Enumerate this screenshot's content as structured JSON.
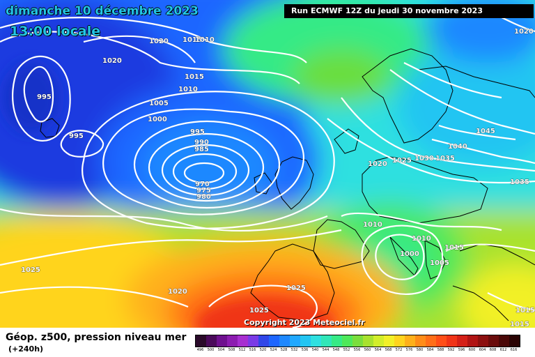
{
  "header": {
    "date": "dimanche 10 décembre 2023",
    "time": "13:00 locale",
    "run": "Run ECMWF 12Z du jeudi 30 novembre 2023"
  },
  "copyright": "Copyright 2023 Meteociel.fr",
  "footer": {
    "title": "Géop. z500, pression niveau mer",
    "subtitle": "(+240h)"
  },
  "legend": {
    "ticks": [
      "496",
      "500",
      "504",
      "508",
      "512",
      "516",
      "520",
      "524",
      "528",
      "532",
      "536",
      "540",
      "544",
      "548",
      "552",
      "556",
      "560",
      "564",
      "568",
      "572",
      "576",
      "580",
      "584",
      "588",
      "592",
      "596",
      "600",
      "604",
      "608",
      "612",
      "616"
    ],
    "colors": [
      "#2a0a2a",
      "#4a0a5a",
      "#6e108e",
      "#8c1cb0",
      "#a72fd0",
      "#7a3ae6",
      "#3046e8",
      "#1e66ff",
      "#1e88ff",
      "#20a8ff",
      "#22c5f2",
      "#2ee0e0",
      "#30e6b8",
      "#36ea86",
      "#4ee85a",
      "#7ade3c",
      "#a8e22e",
      "#d2ee2a",
      "#f2f028",
      "#ffd41e",
      "#ffb01a",
      "#ff8c18",
      "#ff6e18",
      "#ff4e18",
      "#f03418",
      "#d42018",
      "#b01414",
      "#8c1010",
      "#6a0c0c",
      "#4a0808",
      "#2a0404"
    ]
  },
  "pressure_labels": [
    {
      "text": "1020"
    },
    {
      "text": "1020"
    },
    {
      "text": "1015"
    },
    {
      "text": "1015"
    },
    {
      "text": "1010"
    },
    {
      "text": "1005"
    },
    {
      "text": "1000"
    },
    {
      "text": "995"
    },
    {
      "text": "995"
    },
    {
      "text": "995"
    },
    {
      "text": "990"
    },
    {
      "text": "985"
    },
    {
      "text": "970"
    },
    {
      "text": "975"
    },
    {
      "text": "980"
    },
    {
      "text": "1045"
    },
    {
      "text": "1040"
    },
    {
      "text": "1035"
    },
    {
      "text": "1035"
    },
    {
      "text": "1030"
    },
    {
      "text": "1025"
    },
    {
      "text": "1020"
    },
    {
      "text": "1020"
    },
    {
      "text": "1010"
    },
    {
      "text": "1010"
    },
    {
      "text": "1000"
    },
    {
      "text": "1005"
    },
    {
      "text": "1015"
    },
    {
      "text": "1025"
    },
    {
      "text": "1025"
    },
    {
      "text": "1025"
    },
    {
      "text": "1020"
    },
    {
      "text": "1015"
    },
    {
      "text": "1015"
    },
    {
      "text": "1010"
    }
  ]
}
